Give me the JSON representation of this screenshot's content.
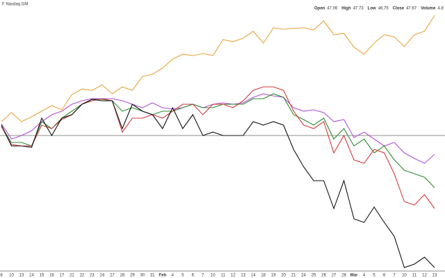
{
  "header": {
    "symbol": "F Nasdaq GM",
    "quote": [
      {
        "label": "Open",
        "value": 47.06
      },
      {
        "label": "High",
        "value": 47.73
      },
      {
        "label": "Low",
        "value": 46.75
      },
      {
        "label": "Close",
        "value": 47.67
      },
      {
        "label": "Volume",
        "value": "4.8"
      }
    ]
  },
  "chart_data": {
    "type": "line",
    "categories": [
      "8",
      "10",
      "13",
      "14",
      "15",
      "16",
      "17",
      "21",
      "22",
      "23",
      "24",
      "27",
      "28",
      "29",
      "30",
      "31",
      "Feb",
      "4",
      "5",
      "6",
      "7",
      "10",
      "11",
      "12",
      "13",
      "14",
      "18",
      "19",
      "20",
      "21",
      "24",
      "25",
      "26",
      "27",
      "28",
      "Mar",
      "4",
      "5",
      "6",
      "7",
      "10",
      "11",
      "12",
      "13"
    ],
    "ylim": [
      -19.5,
      19.5
    ],
    "baseline": 0,
    "series": [
      {
        "color": "#e8a33c",
        "values": [
          2.0,
          3.3,
          2.0,
          2.7,
          3.5,
          4.3,
          3.7,
          5.9,
          6.7,
          6.5,
          7.3,
          6.0,
          7.0,
          6.5,
          8.5,
          8.8,
          9.7,
          11.0,
          11.7,
          11.5,
          11.8,
          11.5,
          13.8,
          13.5,
          14.0,
          15.0,
          13.3,
          15.5,
          15.3,
          15.4,
          15.5,
          15.2,
          16.5,
          14.5,
          14.7,
          12.7,
          11.7,
          13.3,
          14.5,
          14.2,
          12.8,
          14.5,
          15.0,
          17.3
        ]
      },
      {
        "color": "#b04fd6",
        "values": [
          1.7,
          -0.5,
          0.0,
          0.7,
          2.0,
          3.0,
          3.5,
          4.5,
          5.0,
          5.3,
          5.3,
          5.3,
          5.0,
          4.5,
          4.0,
          4.7,
          4.0,
          3.8,
          4.0,
          4.5,
          4.0,
          4.5,
          4.7,
          4.5,
          4.7,
          5.5,
          6.0,
          5.7,
          5.5,
          4.0,
          3.5,
          3.7,
          3.3,
          2.0,
          2.3,
          -0.3,
          0.5,
          -0.5,
          -1.5,
          -1.0,
          -2.5,
          -3.3,
          -4.0,
          -2.7
        ]
      },
      {
        "color": "#2e8b2e",
        "values": [
          1.3,
          -1.0,
          -1.0,
          -1.5,
          2.0,
          1.0,
          2.5,
          3.5,
          4.5,
          5.2,
          5.2,
          5.0,
          3.5,
          4.0,
          3.5,
          3.0,
          3.5,
          3.5,
          4.0,
          4.5,
          4.0,
          4.0,
          4.5,
          4.5,
          4.5,
          5.3,
          5.3,
          6.0,
          5.5,
          3.0,
          2.3,
          1.5,
          2.5,
          -0.5,
          1.0,
          -1.5,
          -0.5,
          -2.5,
          -1.5,
          -3.5,
          -5.0,
          -5.5,
          -6.0,
          -7.5
        ]
      },
      {
        "color": "#d43a3a",
        "values": [
          1.3,
          -1.3,
          -1.5,
          -1.5,
          1.5,
          1.0,
          2.3,
          3.0,
          4.5,
          5.0,
          5.3,
          5.0,
          0.5,
          2.5,
          2.5,
          3.0,
          2.5,
          3.5,
          4.5,
          4.5,
          3.0,
          4.5,
          4.5,
          4.0,
          5.0,
          6.5,
          7.0,
          7.0,
          6.5,
          3.5,
          1.5,
          1.0,
          2.0,
          -2.5,
          0.0,
          -3.5,
          -4.0,
          -2.0,
          -2.5,
          -5.5,
          -9.5,
          -10.0,
          -8.5,
          -10.5
        ]
      },
      {
        "color": "#111111",
        "values": [
          1.5,
          -1.5,
          -1.5,
          -1.7,
          2.5,
          0.0,
          2.5,
          3.0,
          4.5,
          5.2,
          5.0,
          5.0,
          1.0,
          4.5,
          3.5,
          3.0,
          1.0,
          4.0,
          1.0,
          3.0,
          0.0,
          0.5,
          0.0,
          0.0,
          0.0,
          2.0,
          1.5,
          2.0,
          1.5,
          -2.0,
          -4.5,
          -6.5,
          -6.5,
          -10.5,
          -6.5,
          -12.0,
          -12.5,
          -10.3,
          -12.5,
          -14.5,
          -19.0,
          -18.5,
          -17.5,
          -19.0
        ]
      }
    ]
  }
}
